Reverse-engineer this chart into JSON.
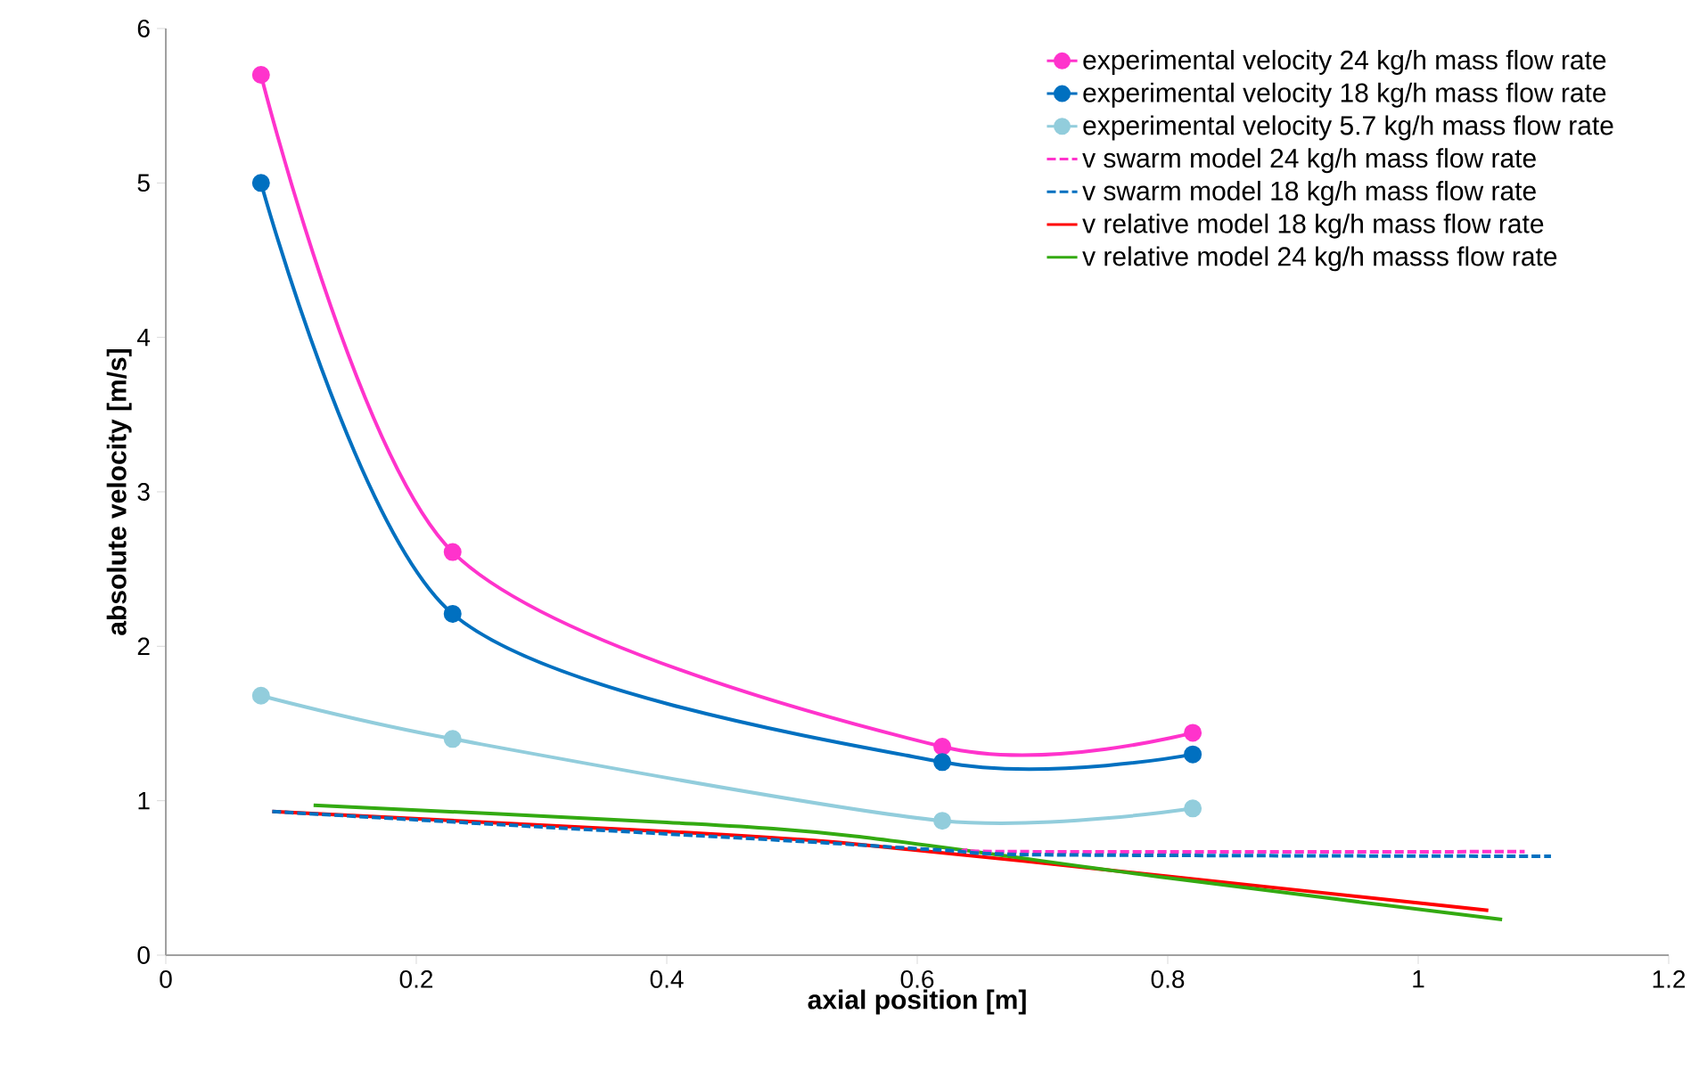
{
  "chart_data": {
    "type": "line",
    "xlabel": "axial position [m]",
    "ylabel": "absolute velocity [m/s]",
    "xlim": [
      0,
      1.2
    ],
    "xticks": [
      0,
      0.2,
      0.4,
      0.6,
      0.8,
      1,
      1.2
    ],
    "ylim": [
      0,
      6
    ],
    "yticks": [
      0,
      1,
      2,
      3,
      4,
      5,
      6
    ],
    "grid": false,
    "legend": "top right",
    "series": [
      {
        "name": "experimental velocity 24 kg/h mass flow rate",
        "color": "#ff33cc",
        "marker": "circle",
        "line_style": "solid",
        "x": [
          0.076,
          0.229,
          0.62,
          0.82
        ],
        "values": [
          5.7,
          2.61,
          1.35,
          1.44
        ]
      },
      {
        "name": "experimental velocity 18 kg/h mass flow rate",
        "color": "#0070c0",
        "marker": "circle",
        "line_style": "solid",
        "x": [
          0.076,
          0.229,
          0.62,
          0.82
        ],
        "values": [
          5.0,
          2.21,
          1.25,
          1.3
        ]
      },
      {
        "name": "experimental velocity 5.7 kg/h mass flow rate",
        "color": "#92cddc",
        "marker": "circle",
        "line_style": "solid",
        "x": [
          0.076,
          0.229,
          0.62,
          0.82
        ],
        "values": [
          1.68,
          1.4,
          0.87,
          0.95
        ]
      },
      {
        "name": "v swarm model 24 kg/h mass flow rate",
        "color": "#ff33cc",
        "marker": "none",
        "line_style": "dashed",
        "x": [
          0.64,
          0.68,
          1.085
        ],
        "values": [
          0.68,
          0.67,
          0.67
        ]
      },
      {
        "name": "v swarm model 18 kg/h mass flow rate",
        "color": "#0070c0",
        "marker": "none",
        "line_style": "dashed",
        "x": [
          0.085,
          0.3,
          0.5,
          0.62,
          0.7,
          1.106
        ],
        "values": [
          0.93,
          0.83,
          0.74,
          0.68,
          0.65,
          0.64
        ]
      },
      {
        "name": "v relative model 18 kg/h mass flow rate",
        "color": "#ff0000",
        "marker": "none",
        "line_style": "solid",
        "x": [
          0.085,
          0.4,
          0.55,
          0.8,
          1.056
        ],
        "values": [
          0.93,
          0.8,
          0.72,
          0.51,
          0.29
        ]
      },
      {
        "name": "v relative model 24 kg/h masss flow rate",
        "color": "#33aa11",
        "marker": "none",
        "line_style": "solid",
        "x": [
          0.118,
          0.4,
          0.55,
          0.8,
          1.067
        ],
        "values": [
          0.97,
          0.86,
          0.77,
          0.5,
          0.23
        ]
      }
    ]
  }
}
